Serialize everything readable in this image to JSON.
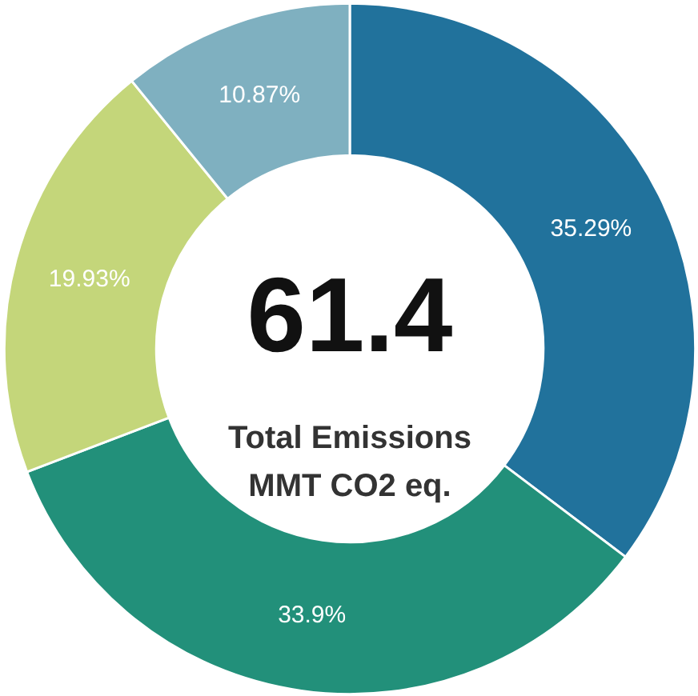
{
  "chart_data": {
    "type": "donut",
    "categories": [
      null,
      null,
      null,
      null
    ],
    "values": [
      35.29,
      33.9,
      19.93,
      10.87
    ],
    "colors": [
      "#21729c",
      "#22907a",
      "#c4d67a",
      "#7fb0c0"
    ],
    "value_labels": [
      "35.29%",
      "33.9%",
      "19.93%",
      "10.87%"
    ],
    "annotations": [
      "61.4",
      "Total Emissions",
      "MMT CO2 eq."
    ]
  }
}
